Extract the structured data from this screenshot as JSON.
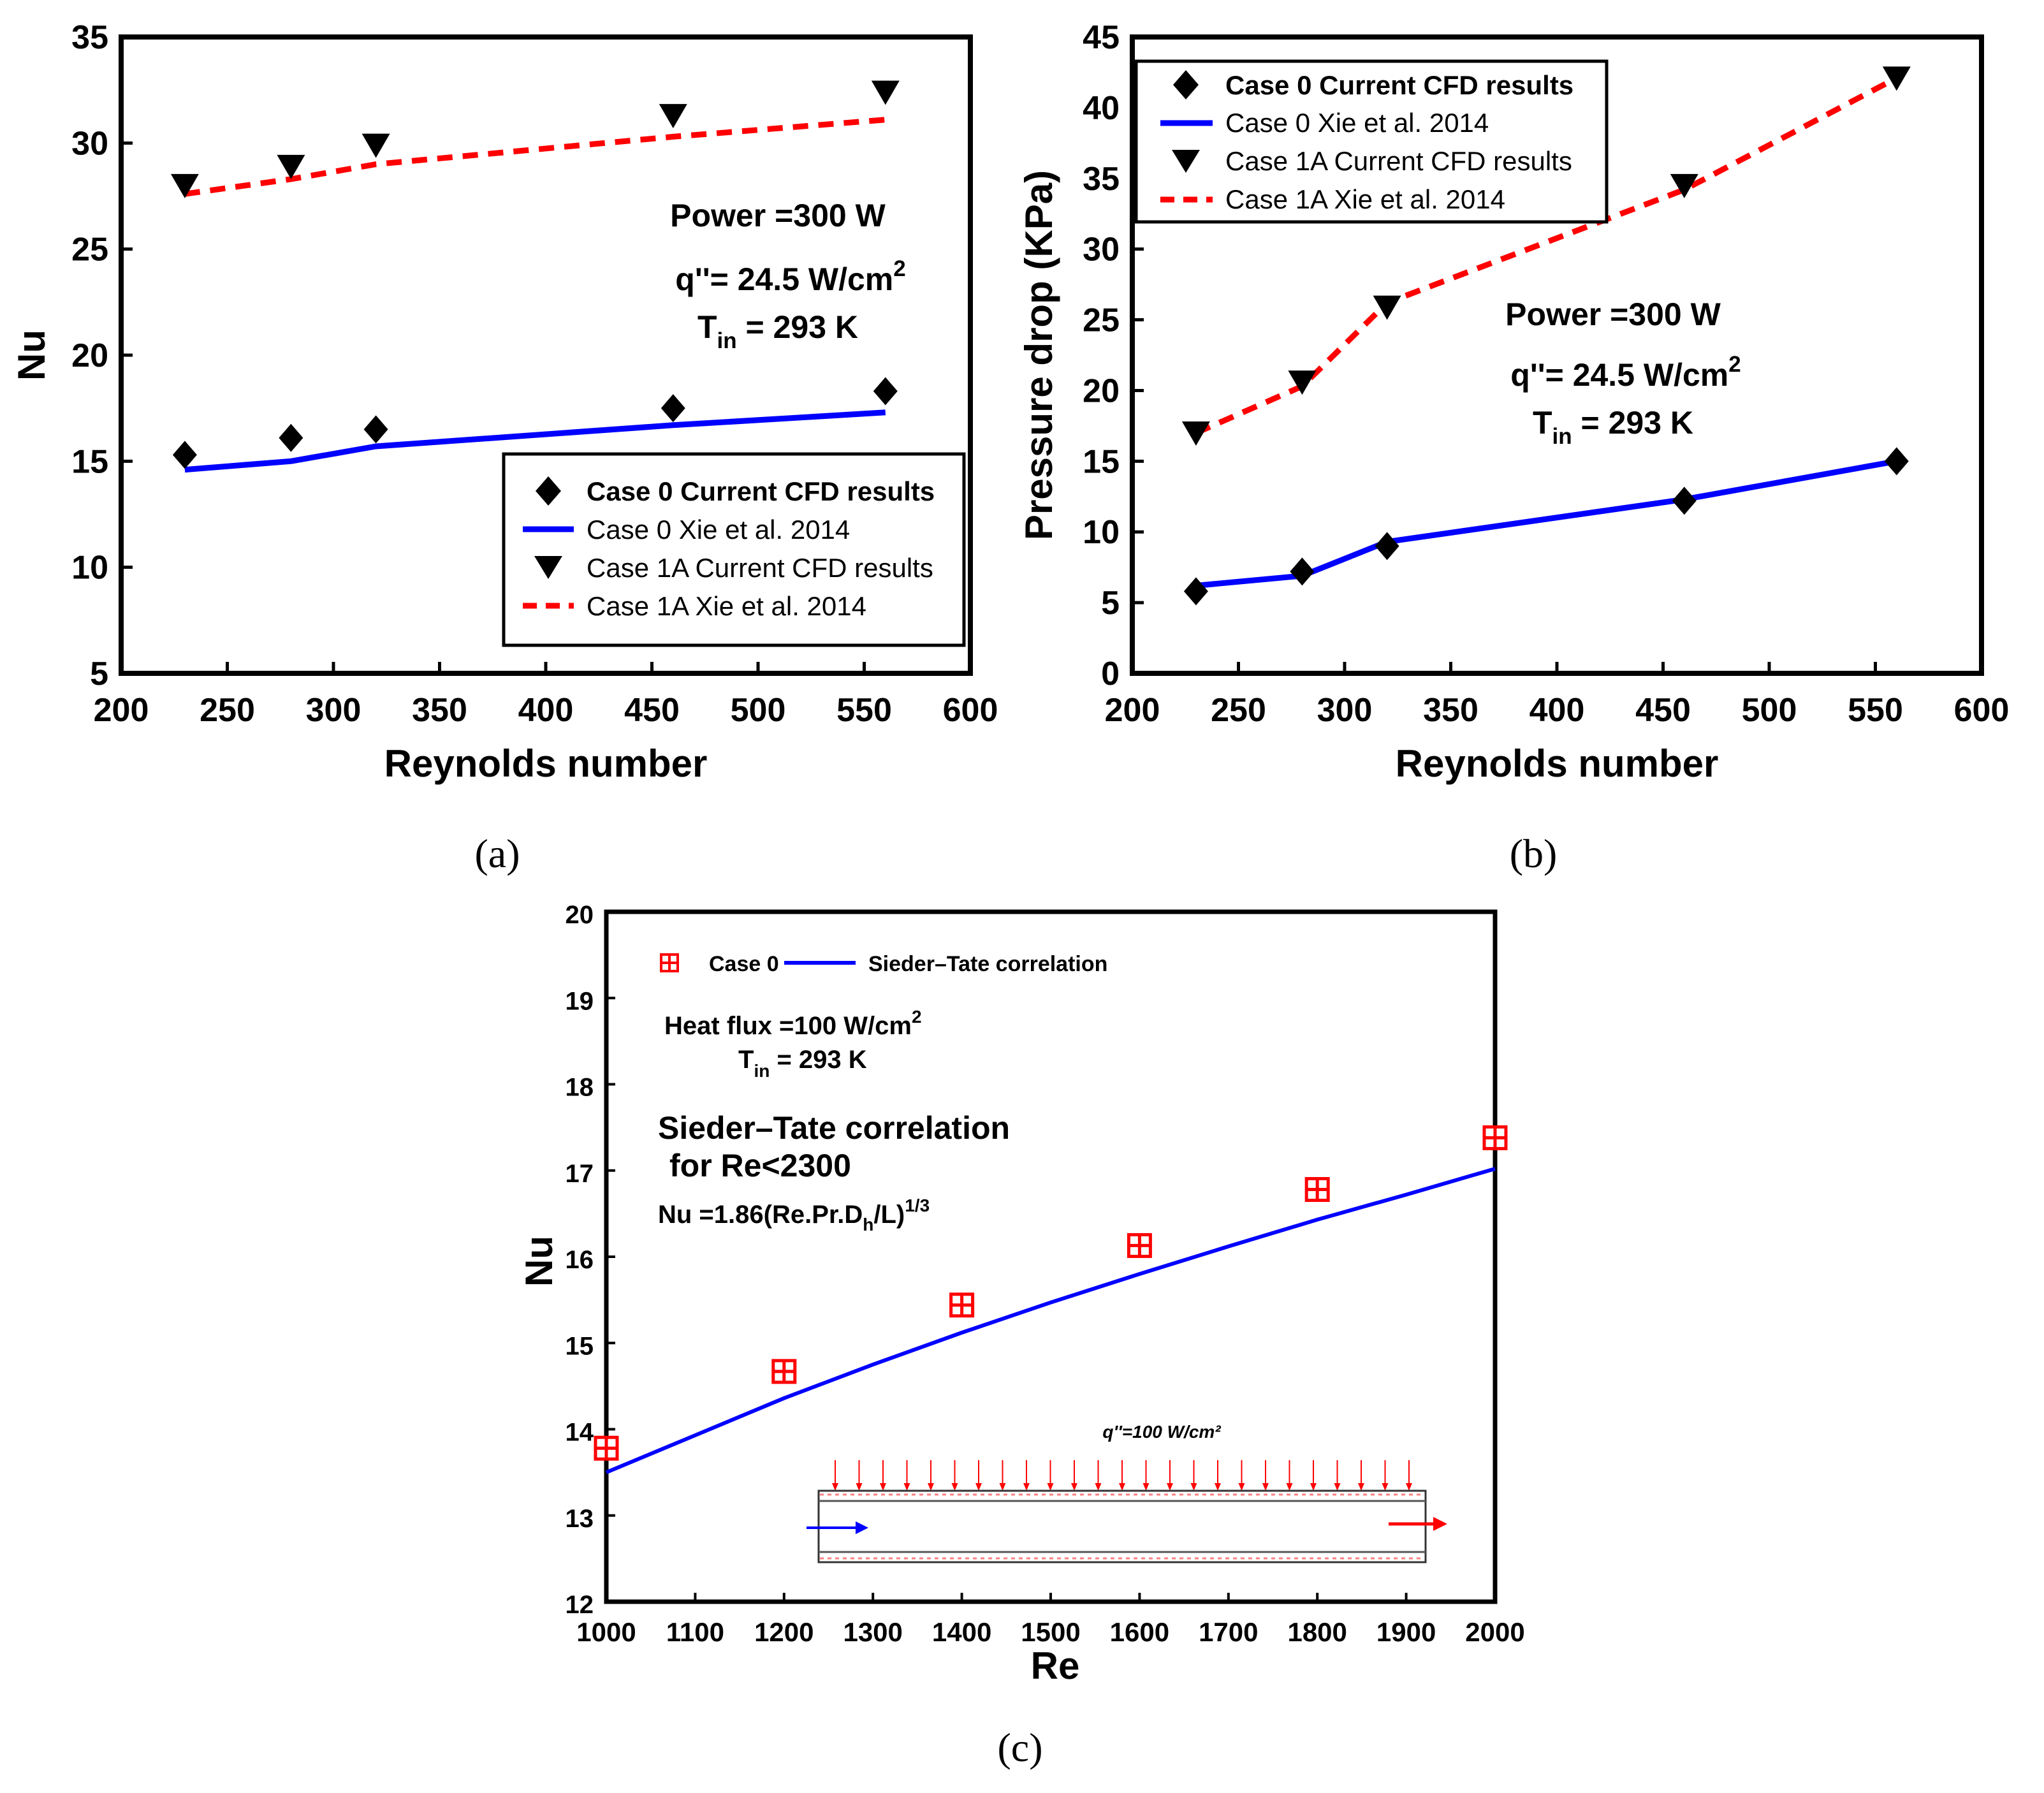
{
  "chart_data": [
    {
      "id": "a",
      "type": "scatter",
      "panel_label": "(a)",
      "xlabel": "Reynolds number",
      "ylabel": "Nu",
      "xlim": [
        200,
        600
      ],
      "ylim": [
        5,
        35
      ],
      "xticks": [
        "200",
        "250",
        "300",
        "350",
        "400",
        "450",
        "500",
        "550",
        "600"
      ],
      "yticks": [
        "5",
        "10",
        "15",
        "20",
        "25",
        "30",
        "35"
      ],
      "annotations": {
        "power": "Power =300 W",
        "flux": "q''= 24.5 W/cm",
        "flux_exp": "2",
        "tin": "T",
        "tin_sub": "in",
        "tin_val": " = 293 K"
      },
      "legend": [
        {
          "label": "Case 0 Current CFD results",
          "marker": "diamond"
        },
        {
          "label": "Case 0 Xie et al. 2014",
          "line": "solid-blue"
        },
        {
          "label": "Case 1A Current CFD results",
          "marker": "triangle-down"
        },
        {
          "label": "Case 1A Xie et al. 2014",
          "line": "dashed-red"
        }
      ],
      "series": [
        {
          "name": "Case 0 Current CFD results",
          "marker": "diamond",
          "color": "#000000",
          "x": [
            230,
            280,
            320,
            460,
            560
          ],
          "y": [
            15.3,
            16.1,
            16.5,
            17.5,
            18.3
          ]
        },
        {
          "name": "Case 0 Xie et al. 2014",
          "line": "solid",
          "color": "#0000ff",
          "x": [
            230,
            280,
            320,
            460,
            560
          ],
          "y": [
            14.6,
            15.0,
            15.7,
            16.7,
            17.3
          ]
        },
        {
          "name": "Case 1A Current CFD results",
          "marker": "triangle-down",
          "color": "#000000",
          "x": [
            230,
            280,
            320,
            460,
            560
          ],
          "y": [
            28.0,
            28.9,
            29.9,
            31.3,
            32.4
          ]
        },
        {
          "name": "Case 1A Xie et al. 2014",
          "line": "dashed",
          "color": "#ff0000",
          "x": [
            230,
            280,
            320,
            460,
            560
          ],
          "y": [
            27.6,
            28.3,
            29.0,
            30.3,
            31.1
          ]
        }
      ]
    },
    {
      "id": "b",
      "type": "scatter",
      "panel_label": "(b)",
      "xlabel": "Reynolds number",
      "ylabel": "Pressure drop (KPa)",
      "xlim": [
        200,
        600
      ],
      "ylim": [
        0,
        45
      ],
      "xticks": [
        "200",
        "250",
        "300",
        "350",
        "400",
        "450",
        "500",
        "550",
        "600"
      ],
      "yticks": [
        "0",
        "5",
        "10",
        "15",
        "20",
        "25",
        "30",
        "35",
        "40",
        "45"
      ],
      "annotations": {
        "power": "Power =300 W",
        "flux": "q''= 24.5 W/cm",
        "flux_exp": "2",
        "tin": "T",
        "tin_sub": "in",
        "tin_val": " = 293 K"
      },
      "legend": [
        {
          "label": "Case 0 Current CFD results",
          "marker": "diamond"
        },
        {
          "label": "Case 0 Xie et al. 2014",
          "line": "solid-blue"
        },
        {
          "label": "Case 1A Current CFD results",
          "marker": "triangle-down"
        },
        {
          "label": "Case 1A Xie et al. 2014",
          "line": "dashed-red"
        }
      ],
      "series": [
        {
          "name": "Case 0 Current CFD results",
          "marker": "diamond",
          "color": "#000000",
          "x": [
            230,
            280,
            320,
            460,
            560
          ],
          "y": [
            5.8,
            7.2,
            9.0,
            12.2,
            15.0
          ]
        },
        {
          "name": "Case 0 Xie et al. 2014",
          "line": "solid",
          "color": "#0000ff",
          "x": [
            230,
            280,
            320,
            460,
            560
          ],
          "y": [
            6.2,
            6.9,
            9.3,
            12.3,
            15.0
          ]
        },
        {
          "name": "Case 1A Current CFD results",
          "marker": "triangle-down",
          "color": "#000000",
          "x": [
            230,
            280,
            320,
            460,
            560
          ],
          "y": [
            17.0,
            20.6,
            25.9,
            34.5,
            42.1
          ]
        },
        {
          "name": "Case 1A Xie et al. 2014",
          "line": "dashed",
          "color": "#ff0000",
          "x": [
            230,
            280,
            320,
            460,
            560
          ],
          "y": [
            17.0,
            20.3,
            26.2,
            34.2,
            42.1
          ]
        }
      ]
    },
    {
      "id": "c",
      "type": "scatter",
      "panel_label": "(c)",
      "xlabel": "Re",
      "ylabel": "Nu",
      "xlim": [
        1000,
        2000
      ],
      "ylim": [
        12,
        20
      ],
      "xticks": [
        "1000",
        "1100",
        "1200",
        "1300",
        "1400",
        "1500",
        "1600",
        "1700",
        "1800",
        "1900",
        "2000"
      ],
      "yticks": [
        "12",
        "13",
        "14",
        "15",
        "16",
        "17",
        "18",
        "19",
        "20"
      ],
      "annotations": {
        "heat_flux": "Heat flux =100 W/cm",
        "heat_flux_exp": "2",
        "tin": "T",
        "tin_sub": "in",
        "tin_val": " = 293 K",
        "corr_title": "Sieder–Tate correlation",
        "corr_range": "for  Re<2300",
        "corr_eq": "Nu =1.86(Re.Pr.D",
        "corr_eq_sub": "h",
        "corr_eq_tail": "/L)",
        "corr_eq_exp": "1/3",
        "inset_label": "q''=100 W/cm²"
      },
      "legend": [
        {
          "label": "Case 0",
          "marker": "boxed-plus"
        },
        {
          "label": "Sieder–Tate correlation",
          "line": "solid-blue"
        }
      ],
      "series": [
        {
          "name": "Case 0",
          "marker": "boxed-plus",
          "color": "#ff0000",
          "x": [
            1000,
            1200,
            1400,
            1600,
            1800,
            2000
          ],
          "y": [
            13.78,
            14.67,
            15.44,
            16.13,
            16.78,
            17.38
          ]
        },
        {
          "name": "Sieder–Tate correlation",
          "line": "solid",
          "color": "#0000ff",
          "x": [
            1000,
            1100,
            1200,
            1300,
            1400,
            1500,
            1600,
            1700,
            1800,
            1900,
            2000
          ],
          "y": [
            13.5,
            13.93,
            14.36,
            14.75,
            15.12,
            15.47,
            15.8,
            16.12,
            16.43,
            16.72,
            17.02
          ]
        }
      ]
    }
  ],
  "colors": {
    "blue": "#0000ff",
    "red": "#ff0000",
    "black": "#000000"
  }
}
